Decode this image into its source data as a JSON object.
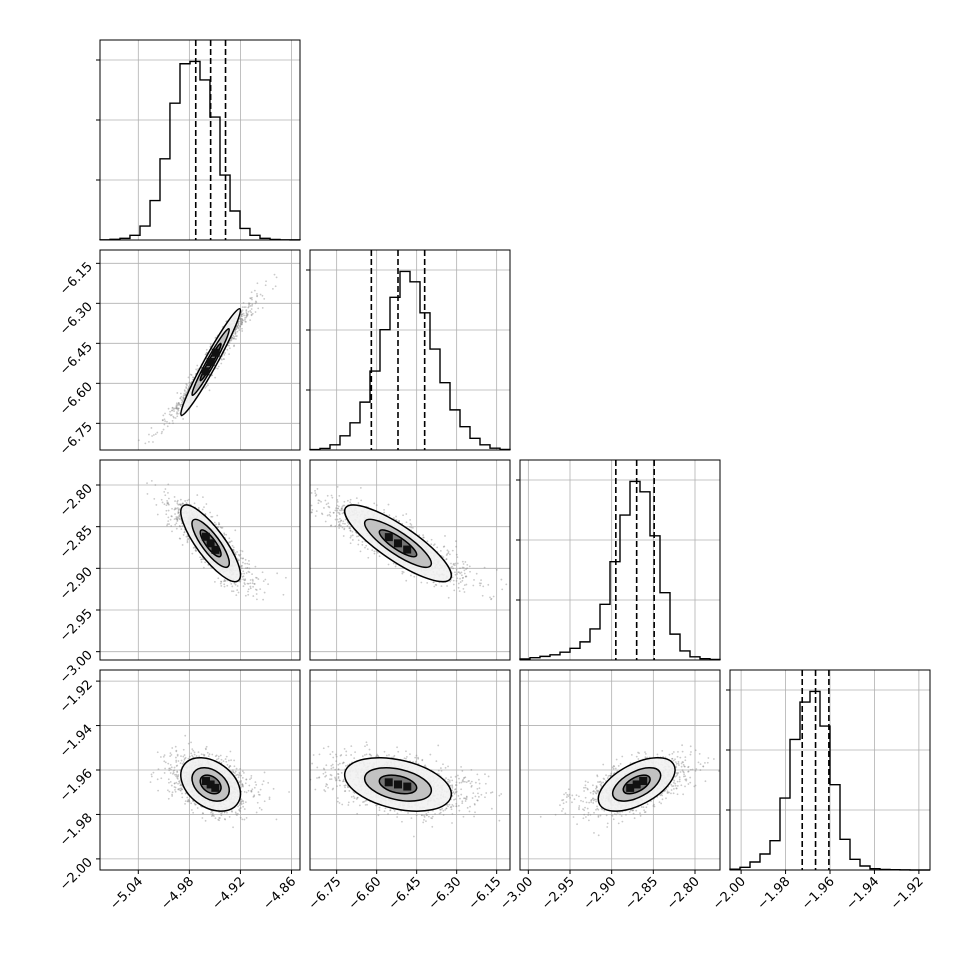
{
  "chart_data": {
    "type": "corner",
    "parameters": [
      {
        "median": -4.955,
        "q16": -4.9725,
        "q84": -4.9375,
        "std": 0.0175,
        "range": [
          -5.085,
          -4.85
        ],
        "ticks": [
          "-5.04",
          "-4.98",
          "-4.92",
          "-4.86"
        ]
      },
      {
        "median": -6.52,
        "q16": -6.62,
        "q84": -6.42,
        "std": 0.1,
        "range": [
          -6.85,
          -6.1
        ],
        "ticks": [
          "-6.75",
          "-6.60",
          "-6.45",
          "-6.30",
          "-6.15"
        ]
      },
      {
        "median": -2.87,
        "q16": -2.895,
        "q84": -2.849,
        "std": 0.023,
        "range": [
          -3.01,
          -2.77
        ],
        "ticks": [
          "-3.00",
          "-2.95",
          "-2.90",
          "-2.85",
          "-2.80"
        ]
      },
      {
        "median": -1.9665,
        "q16": -1.9725,
        "q84": -1.9605,
        "std": 0.006,
        "range": [
          -2.005,
          -1.915
        ],
        "ticks": [
          "-2.00",
          "-1.98",
          "-1.96",
          "-1.94",
          "-1.92"
        ]
      }
    ],
    "histograms": [
      {
        "bin_edges": [
          -5.085,
          -5.0732,
          -5.0615,
          -5.0498,
          -5.038,
          -5.0262,
          -5.0145,
          -5.0028,
          -4.991,
          -4.9792,
          -4.9675,
          -4.9558,
          -4.944,
          -4.9322,
          -4.9205,
          -4.9088,
          -4.897,
          -4.8852,
          -4.8735,
          -4.8617,
          -4.85
        ],
        "counts": [
          2,
          6,
          14,
          40,
          120,
          340,
          700,
          1180,
          1520,
          1540,
          1380,
          1060,
          560,
          250,
          100,
          40,
          14,
          5,
          2,
          1
        ]
      },
      {
        "bin_edges": [
          -6.85,
          -6.8125,
          -6.775,
          -6.7375,
          -6.7,
          -6.6625,
          -6.625,
          -6.5875,
          -6.55,
          -6.5125,
          -6.475,
          -6.4375,
          -6.4,
          -6.3625,
          -6.325,
          -6.2875,
          -6.25,
          -6.2125,
          -6.175,
          -6.1375,
          -6.1
        ],
        "counts": [
          3,
          12,
          40,
          110,
          210,
          370,
          610,
          930,
          1180,
          1380,
          1300,
          1060,
          780,
          520,
          310,
          180,
          90,
          40,
          14,
          4
        ]
      },
      {
        "bin_edges": [
          -3.01,
          -2.998,
          -2.986,
          -2.974,
          -2.962,
          -2.95,
          -2.938,
          -2.926,
          -2.914,
          -2.902,
          -2.89,
          -2.878,
          -2.866,
          -2.854,
          -2.842,
          -2.83,
          -2.818,
          -2.806,
          -2.794,
          -2.782,
          -2.77
        ],
        "counts": [
          8,
          18,
          28,
          40,
          60,
          90,
          140,
          240,
          430,
          760,
          1120,
          1380,
          1300,
          960,
          520,
          200,
          70,
          25,
          10,
          4
        ]
      },
      {
        "bin_edges": [
          -2.005,
          -2.0005,
          -1.996,
          -1.9915,
          -1.987,
          -1.9825,
          -1.978,
          -1.9735,
          -1.969,
          -1.9645,
          -1.96,
          -1.9555,
          -1.951,
          -1.9465,
          -1.942,
          -1.9375,
          -1.933,
          -1.9285,
          -1.924,
          -1.9195,
          -1.915
        ],
        "counts": [
          6,
          20,
          60,
          120,
          220,
          540,
          980,
          1260,
          1340,
          1080,
          640,
          230,
          80,
          30,
          10,
          4,
          2,
          1,
          0,
          0
        ]
      }
    ],
    "correlations": [
      [
        1.0,
        0.97,
        -0.82,
        -0.35
      ],
      [
        0.97,
        1.0,
        -0.84,
        -0.36
      ],
      [
        -0.82,
        -0.84,
        1.0,
        0.55
      ],
      [
        -0.35,
        -0.36,
        0.55,
        1.0
      ]
    ],
    "colors": {
      "line": "#000000",
      "grid": "#b0b0b0",
      "scatter": "#8a8a8a"
    },
    "grid": true,
    "quantile_lines": "dashed"
  }
}
